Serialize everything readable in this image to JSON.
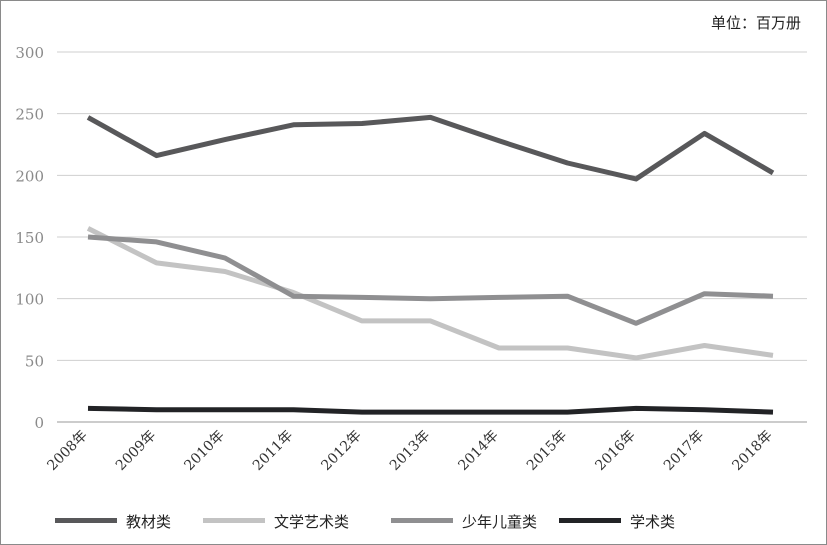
{
  "unit_label": "单位：百万册",
  "chart_data": {
    "type": "line",
    "categories": [
      "2008年",
      "2009年",
      "2010年",
      "2011年",
      "2012年",
      "2013年",
      "2014年",
      "2015年",
      "2016年",
      "2017年",
      "2018年"
    ],
    "ylim": [
      0,
      300
    ],
    "yticks": [
      0,
      50,
      100,
      150,
      200,
      250,
      300
    ],
    "grid": true,
    "legend_position": "bottom",
    "series": [
      {
        "name": "教材类",
        "color": "#58585a",
        "values": [
          247,
          216,
          229,
          241,
          242,
          247,
          228,
          210,
          197,
          234,
          202
        ]
      },
      {
        "name": "文学艺术类",
        "color": "#c3c3c3",
        "values": [
          157,
          129,
          122,
          105,
          82,
          82,
          60,
          60,
          52,
          62,
          54
        ]
      },
      {
        "name": "少年儿童类",
        "color": "#8f8f91",
        "values": [
          150,
          146,
          133,
          102,
          101,
          100,
          101,
          102,
          80,
          104,
          102
        ]
      },
      {
        "name": "学术类",
        "color": "#222326",
        "values": [
          11,
          10,
          10,
          10,
          8,
          8,
          8,
          8,
          11,
          10,
          8
        ]
      }
    ]
  }
}
